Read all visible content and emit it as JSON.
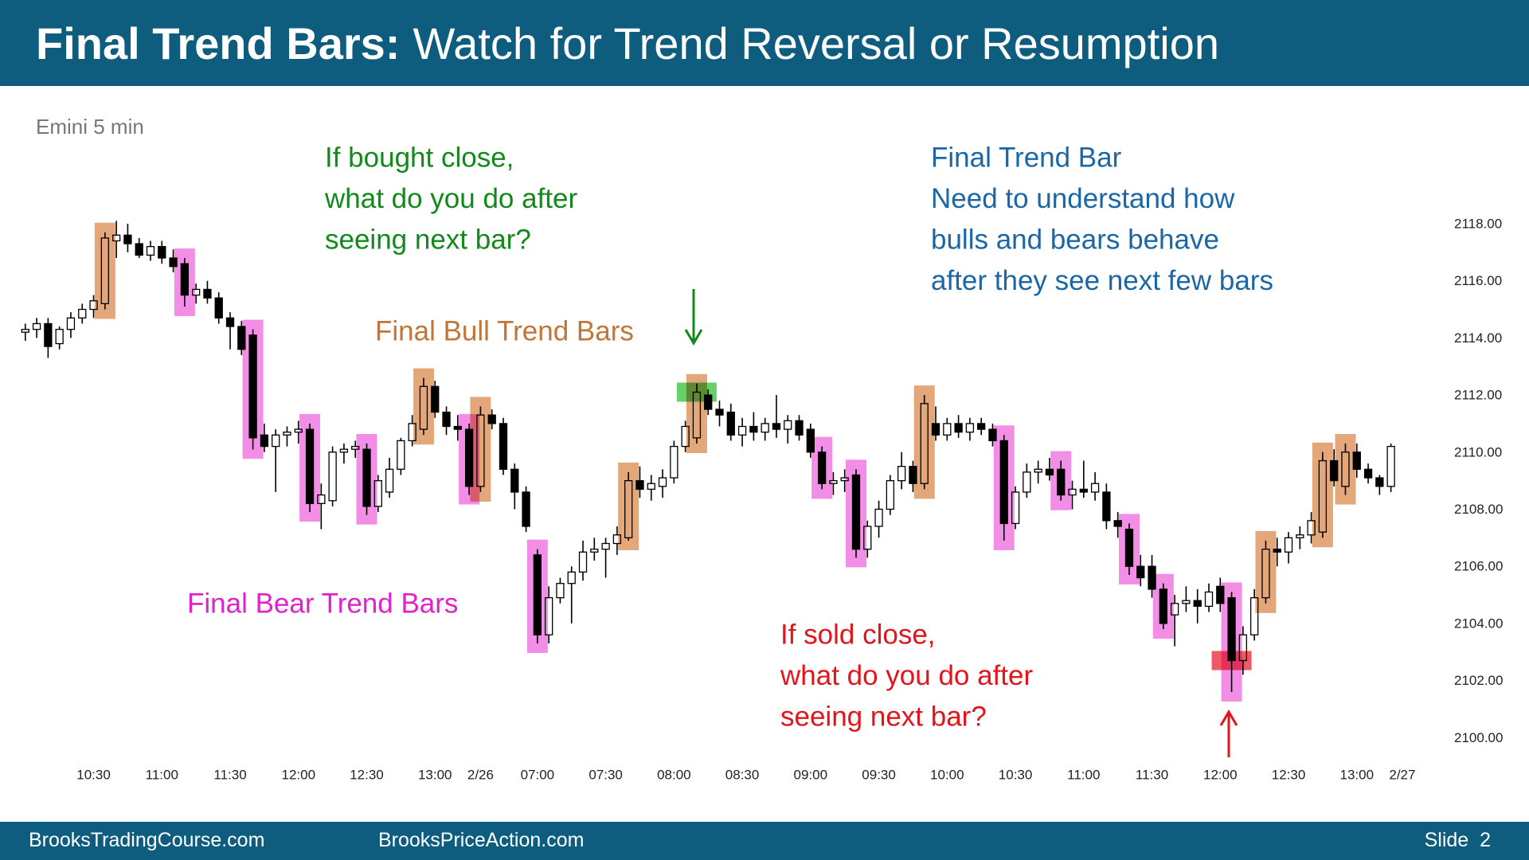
{
  "header": {
    "title_bold": "Final Trend Bars:",
    "title_rest": "Watch for Trend Reversal or Resumption"
  },
  "chart_data": {
    "type": "candlestick",
    "subtitle": "Emini 5 min",
    "ylim": [
      2099.2,
      2119.7
    ],
    "yticks": [
      {
        "value": 2100,
        "label": "2100.00"
      },
      {
        "value": 2102,
        "label": "2102.00"
      },
      {
        "value": 2104,
        "label": "2104.00"
      },
      {
        "value": 2106,
        "label": "2106.00"
      },
      {
        "value": 2108,
        "label": "2108.00"
      },
      {
        "value": 2110,
        "label": "2110.00"
      },
      {
        "value": 2112,
        "label": "2112.00"
      },
      {
        "value": 2114,
        "label": "2114.00"
      },
      {
        "value": 2116,
        "label": "2116.00"
      },
      {
        "value": 2118,
        "label": "2118.00"
      }
    ],
    "xlim": [
      -1,
      124
    ],
    "xticks": [
      {
        "value": 6,
        "label": "10:30"
      },
      {
        "value": 12,
        "label": "11:00"
      },
      {
        "value": 18,
        "label": "11:30"
      },
      {
        "value": 24,
        "label": "12:00"
      },
      {
        "value": 30,
        "label": "12:30"
      },
      {
        "value": 36,
        "label": "13:00"
      },
      {
        "value": 40,
        "label": "2/26"
      },
      {
        "value": 45,
        "label": "07:00"
      },
      {
        "value": 51,
        "label": "07:30"
      },
      {
        "value": 57,
        "label": "08:00"
      },
      {
        "value": 63,
        "label": "08:30"
      },
      {
        "value": 69,
        "label": "09:00"
      },
      {
        "value": 75,
        "label": "09:30"
      },
      {
        "value": 81,
        "label": "10:00"
      },
      {
        "value": 87,
        "label": "10:30"
      },
      {
        "value": 93,
        "label": "11:00"
      },
      {
        "value": 99,
        "label": "11:30"
      },
      {
        "value": 105,
        "label": "12:00"
      },
      {
        "value": 111,
        "label": "12:30"
      },
      {
        "value": 117,
        "label": "13:00"
      },
      {
        "value": 121,
        "label": "2/27"
      }
    ],
    "candles": [
      [
        2114.2,
        2114.5,
        2113.9,
        2114.3
      ],
      [
        2114.3,
        2114.7,
        2114.0,
        2114.5
      ],
      [
        2114.5,
        2114.7,
        2113.3,
        2113.7
      ],
      [
        2113.8,
        2114.4,
        2113.6,
        2114.3
      ],
      [
        2114.3,
        2114.9,
        2114.0,
        2114.7
      ],
      [
        2114.7,
        2115.2,
        2114.5,
        2115.0
      ],
      [
        2115.0,
        2115.5,
        2114.7,
        2115.3
      ],
      [
        2115.2,
        2117.7,
        2115.0,
        2117.5
      ],
      [
        2117.4,
        2118.1,
        2116.8,
        2117.6
      ],
      [
        2117.6,
        2118.0,
        2117.0,
        2117.3
      ],
      [
        2117.3,
        2117.5,
        2116.8,
        2116.9
      ],
      [
        2116.9,
        2117.4,
        2116.7,
        2117.2
      ],
      [
        2117.2,
        2117.4,
        2116.6,
        2116.8
      ],
      [
        2116.8,
        2117.1,
        2116.3,
        2116.5
      ],
      [
        2116.6,
        2116.8,
        2115.1,
        2115.5
      ],
      [
        2115.5,
        2115.9,
        2115.2,
        2115.7
      ],
      [
        2115.7,
        2116.0,
        2115.2,
        2115.4
      ],
      [
        2115.4,
        2115.6,
        2114.5,
        2114.7
      ],
      [
        2114.7,
        2114.9,
        2113.6,
        2114.4
      ],
      [
        2114.4,
        2114.6,
        2113.4,
        2113.6
      ],
      [
        2114.1,
        2114.3,
        2110.1,
        2110.5
      ],
      [
        2110.6,
        2111.0,
        2110.0,
        2110.2
      ],
      [
        2110.2,
        2110.8,
        2108.6,
        2110.6
      ],
      [
        2110.6,
        2110.9,
        2110.2,
        2110.7
      ],
      [
        2110.7,
        2111.1,
        2110.3,
        2110.8
      ],
      [
        2110.8,
        2111.0,
        2107.9,
        2108.2
      ],
      [
        2108.2,
        2108.9,
        2107.3,
        2108.5
      ],
      [
        2108.3,
        2110.2,
        2108.1,
        2110.0
      ],
      [
        2110.0,
        2110.3,
        2109.6,
        2110.1
      ],
      [
        2110.1,
        2110.4,
        2109.8,
        2110.2
      ],
      [
        2110.1,
        2110.3,
        2107.8,
        2108.1
      ],
      [
        2108.1,
        2109.2,
        2107.9,
        2109.0
      ],
      [
        2108.6,
        2109.8,
        2108.4,
        2109.4
      ],
      [
        2109.4,
        2110.5,
        2109.2,
        2110.4
      ],
      [
        2110.4,
        2111.3,
        2110.2,
        2111.0
      ],
      [
        2110.8,
        2112.6,
        2110.6,
        2112.3
      ],
      [
        2112.3,
        2112.5,
        2111.2,
        2111.4
      ],
      [
        2111.4,
        2111.6,
        2110.6,
        2110.9
      ],
      [
        2110.9,
        2111.3,
        2110.4,
        2110.8
      ],
      [
        2110.8,
        2111.0,
        2108.5,
        2108.8
      ],
      [
        2108.8,
        2111.6,
        2108.6,
        2111.3
      ],
      [
        2111.3,
        2111.5,
        2110.8,
        2111.0
      ],
      [
        2111.0,
        2111.2,
        2109.2,
        2109.4
      ],
      [
        2109.4,
        2109.6,
        2108.0,
        2108.6
      ],
      [
        2108.6,
        2108.8,
        2107.2,
        2107.4
      ],
      [
        2106.4,
        2106.6,
        2103.3,
        2103.6
      ],
      [
        2103.6,
        2105.3,
        2103.3,
        2104.9
      ],
      [
        2104.9,
        2105.6,
        2104.7,
        2105.4
      ],
      [
        2105.4,
        2106.0,
        2104.0,
        2105.8
      ],
      [
        2105.8,
        2106.9,
        2105.5,
        2106.5
      ],
      [
        2106.5,
        2107.0,
        2106.2,
        2106.6
      ],
      [
        2106.6,
        2107.0,
        2105.6,
        2106.8
      ],
      [
        2106.8,
        2107.4,
        2106.4,
        2107.1
      ],
      [
        2107.0,
        2109.3,
        2106.9,
        2109.0
      ],
      [
        2109.0,
        2109.5,
        2108.4,
        2108.7
      ],
      [
        2108.7,
        2109.2,
        2108.3,
        2108.9
      ],
      [
        2108.8,
        2109.4,
        2108.4,
        2109.1
      ],
      [
        2109.1,
        2110.4,
        2108.9,
        2110.2
      ],
      [
        2110.2,
        2111.1,
        2110.0,
        2110.9
      ],
      [
        2110.5,
        2112.4,
        2110.3,
        2112.1
      ],
      [
        2112.0,
        2112.2,
        2111.3,
        2111.5
      ],
      [
        2111.5,
        2111.8,
        2110.9,
        2111.3
      ],
      [
        2111.4,
        2111.7,
        2110.4,
        2110.6
      ],
      [
        2110.6,
        2111.2,
        2110.2,
        2110.9
      ],
      [
        2110.9,
        2111.4,
        2110.4,
        2110.7
      ],
      [
        2110.7,
        2111.2,
        2110.4,
        2111.0
      ],
      [
        2111.0,
        2112.0,
        2110.5,
        2110.8
      ],
      [
        2110.8,
        2111.3,
        2110.3,
        2111.1
      ],
      [
        2111.1,
        2111.3,
        2110.4,
        2110.6
      ],
      [
        2110.8,
        2111.0,
        2109.8,
        2110.0
      ],
      [
        2110.0,
        2110.2,
        2108.7,
        2108.9
      ],
      [
        2108.9,
        2109.3,
        2108.5,
        2109.0
      ],
      [
        2109.0,
        2109.4,
        2108.6,
        2109.1
      ],
      [
        2109.2,
        2109.4,
        2106.3,
        2106.6
      ],
      [
        2106.6,
        2107.6,
        2106.3,
        2107.4
      ],
      [
        2107.4,
        2108.3,
        2107.0,
        2108.0
      ],
      [
        2108.0,
        2109.2,
        2107.8,
        2109.0
      ],
      [
        2109.0,
        2110.0,
        2108.7,
        2109.5
      ],
      [
        2109.5,
        2109.7,
        2108.6,
        2108.9
      ],
      [
        2108.9,
        2112.0,
        2108.7,
        2111.7
      ],
      [
        2111.0,
        2111.6,
        2110.4,
        2110.6
      ],
      [
        2110.6,
        2111.2,
        2110.4,
        2111.0
      ],
      [
        2111.0,
        2111.3,
        2110.5,
        2110.7
      ],
      [
        2110.7,
        2111.2,
        2110.4,
        2111.0
      ],
      [
        2111.0,
        2111.2,
        2110.6,
        2110.8
      ],
      [
        2110.8,
        2111.0,
        2110.2,
        2110.4
      ],
      [
        2110.4,
        2110.6,
        2106.9,
        2107.5
      ],
      [
        2107.5,
        2108.8,
        2107.3,
        2108.6
      ],
      [
        2108.6,
        2109.6,
        2108.4,
        2109.3
      ],
      [
        2109.3,
        2109.7,
        2108.9,
        2109.4
      ],
      [
        2109.4,
        2109.8,
        2109.0,
        2109.2
      ],
      [
        2109.4,
        2109.7,
        2108.3,
        2108.5
      ],
      [
        2108.5,
        2109.0,
        2108.0,
        2108.7
      ],
      [
        2108.7,
        2109.7,
        2108.4,
        2108.6
      ],
      [
        2108.6,
        2109.3,
        2108.3,
        2108.9
      ],
      [
        2108.6,
        2108.9,
        2107.3,
        2107.6
      ],
      [
        2107.6,
        2107.9,
        2107.0,
        2107.4
      ],
      [
        2107.3,
        2107.5,
        2105.7,
        2106.0
      ],
      [
        2106.0,
        2106.4,
        2105.3,
        2105.6
      ],
      [
        2106.0,
        2106.4,
        2104.9,
        2105.2
      ],
      [
        2105.2,
        2105.4,
        2103.8,
        2104.0
      ],
      [
        2104.3,
        2105.0,
        2103.2,
        2104.7
      ],
      [
        2104.7,
        2105.3,
        2104.4,
        2104.8
      ],
      [
        2104.8,
        2105.2,
        2104.0,
        2104.6
      ],
      [
        2104.6,
        2105.4,
        2104.4,
        2105.1
      ],
      [
        2105.3,
        2105.6,
        2104.4,
        2104.7
      ],
      [
        2104.9,
        2105.1,
        2101.6,
        2102.7
      ],
      [
        2102.7,
        2103.9,
        2102.2,
        2103.6
      ],
      [
        2103.6,
        2105.2,
        2103.4,
        2104.9
      ],
      [
        2104.9,
        2106.9,
        2104.7,
        2106.6
      ],
      [
        2106.6,
        2107.0,
        2106.0,
        2106.5
      ],
      [
        2106.5,
        2107.2,
        2106.1,
        2107.0
      ],
      [
        2107.0,
        2107.4,
        2106.6,
        2107.1
      ],
      [
        2107.1,
        2107.9,
        2106.8,
        2107.6
      ],
      [
        2107.2,
        2110.0,
        2107.0,
        2109.7
      ],
      [
        2109.7,
        2110.1,
        2108.8,
        2109.0
      ],
      [
        2108.8,
        2110.3,
        2108.5,
        2110.0
      ],
      [
        2110.0,
        2110.3,
        2109.1,
        2109.4
      ],
      [
        2109.4,
        2109.6,
        2108.9,
        2109.1
      ],
      [
        2109.1,
        2109.2,
        2108.5,
        2108.8
      ],
      [
        2108.8,
        2110.3,
        2108.6,
        2110.2
      ]
    ],
    "bull_highlight": {
      "color": "#e3a77a",
      "bars": [
        7,
        35,
        40,
        53,
        59,
        79,
        109,
        114,
        116
      ]
    },
    "bear_highlight": {
      "color": "#f28ee6",
      "bars": [
        14,
        20,
        25,
        30,
        39,
        45,
        70,
        73,
        86,
        91,
        97,
        100,
        106
      ]
    },
    "signal_bars": [
      {
        "bar": 59,
        "color": "#4cc94c"
      },
      {
        "bar": 106,
        "color": "#ee3a4a"
      }
    ],
    "annotations": [
      {
        "color": "#12891a",
        "lines": [
          "If bought close,",
          "what do you do after",
          "seeing next bar?"
        ]
      },
      {
        "color": "#1b67a6",
        "lines": [
          "Final Trend Bar",
          "Need to understand how",
          "bulls and bears behave",
          "after they see next few bars"
        ]
      },
      {
        "color": "#c27538",
        "lines": [
          "Final Bull Trend Bars"
        ]
      },
      {
        "color": "#e022cc",
        "lines": [
          "Final Bear Trend Bars"
        ]
      },
      {
        "color": "#e3141c",
        "lines": [
          "If sold close,",
          "what do you do after",
          "seeing next bar?"
        ]
      }
    ]
  },
  "footer": {
    "left": "BrooksTradingCourse.com",
    "center": "BrooksPriceAction.com",
    "slide": "Slide  2"
  }
}
